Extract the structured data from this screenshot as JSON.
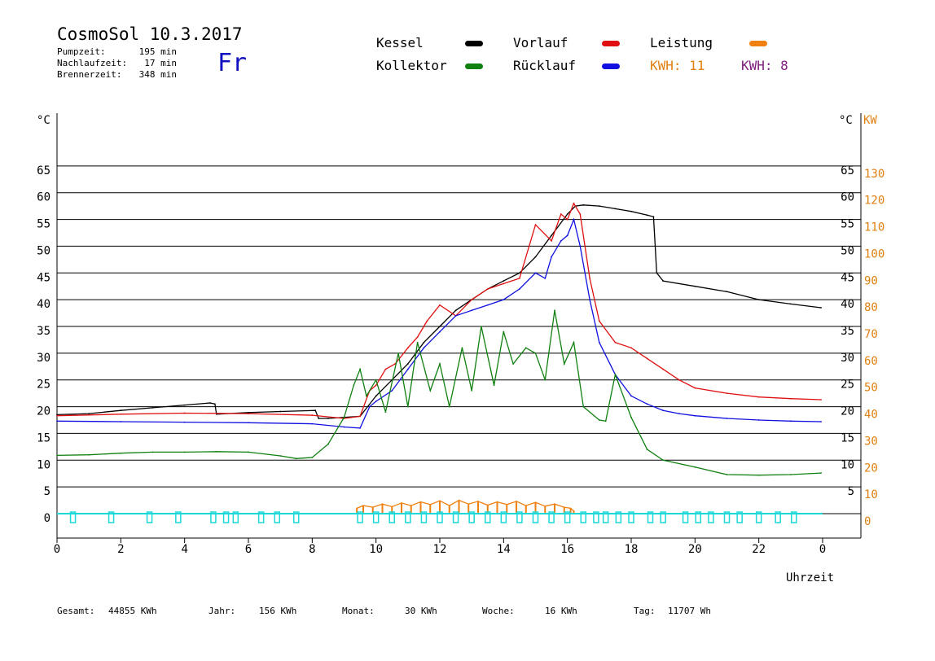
{
  "header": {
    "title": "CosmoSol 10.3.2017",
    "day": "Fr",
    "stats": [
      {
        "label": "Pumpzeit:",
        "value": "195 min"
      },
      {
        "label": "Nachlaufzeit:",
        "value": "17 min"
      },
      {
        "label": "Brennerzeit:",
        "value": "348 min"
      }
    ]
  },
  "legend": {
    "items": [
      {
        "label": "Kessel",
        "color": "#000000"
      },
      {
        "label": "Vorlauf",
        "color": "#e01010"
      },
      {
        "label": "Leistung",
        "color": "#f08010"
      },
      {
        "label": "Kollektor",
        "color": "#108010"
      },
      {
        "label": "Rücklauf",
        "color": "#1010e0"
      }
    ],
    "kwh_a": {
      "text": "KWH: 11",
      "color": "#e08010"
    },
    "kwh_b": {
      "text": "KWH: 8",
      "color": "#802080"
    }
  },
  "footer": {
    "items": [
      {
        "label": "Gesamt:",
        "value": "44855 KWh"
      },
      {
        "label": "Jahr:",
        "value": "156 KWh"
      },
      {
        "label": "Monat:",
        "value": "30 KWh"
      },
      {
        "label": "Woche:",
        "value": "16 KWh"
      },
      {
        "label": "Tag:",
        "value": "11707 Wh"
      }
    ]
  },
  "chart_data": {
    "type": "line",
    "xlabel": "Uhrzeit",
    "y_unit_left": "°C",
    "y_unit_right_temp": "°C",
    "y_unit_right_power": "KW",
    "xlim": [
      0,
      24
    ],
    "ylim": [
      0,
      70
    ],
    "x_ticks": [
      "0",
      "2",
      "4",
      "6",
      "8",
      "10",
      "12",
      "14",
      "16",
      "18",
      "20",
      "22",
      "0"
    ],
    "y_ticks_left": [
      "0",
      "5",
      "10",
      "15",
      "20",
      "25",
      "30",
      "35",
      "40",
      "45",
      "50",
      "55",
      "60",
      "65"
    ],
    "y_ticks_right_temp": [
      "5",
      "10",
      "15",
      "20",
      "25",
      "30",
      "35",
      "40",
      "45",
      "50",
      "55",
      "60",
      "65"
    ],
    "y_ticks_right_power": [
      "0",
      "10",
      "20",
      "30",
      "40",
      "50",
      "60",
      "70",
      "80",
      "90",
      "100",
      "110",
      "120",
      "130"
    ],
    "grid": true,
    "series": [
      {
        "name": "Kessel",
        "color": "#000000",
        "x": [
          0,
          1,
          2,
          3,
          4,
          4.8,
          4.95,
          5.0,
          6,
          7,
          8.1,
          8.2,
          8.5,
          9.5,
          10,
          10.5,
          11,
          11.5,
          12,
          12.5,
          13,
          13.5,
          14,
          14.5,
          15,
          15.5,
          16,
          16.25,
          16.5,
          17,
          17.5,
          18,
          18.5,
          18.7,
          18.8,
          19,
          20,
          21,
          22,
          23,
          23.95
        ],
        "y": [
          18.5,
          18.7,
          19.3,
          19.8,
          20.3,
          20.7,
          20.5,
          18.6,
          18.9,
          19.1,
          19.3,
          17.8,
          17.8,
          18.2,
          22,
          25,
          28,
          32,
          35,
          38,
          40,
          42,
          43.5,
          45,
          48,
          52,
          56,
          57.5,
          57.7,
          57.5,
          57,
          56.5,
          55.8,
          55.5,
          45,
          43.5,
          42.5,
          41.5,
          40,
          39.2,
          38.5
        ]
      },
      {
        "name": "Vorlauf",
        "color": "#e01010",
        "x": [
          0,
          2,
          4,
          6,
          8,
          9,
          9.5,
          9.8,
          10,
          10.3,
          10.6,
          11,
          11.3,
          11.6,
          12,
          12.5,
          13,
          13.5,
          14,
          14.5,
          15,
          15.5,
          15.8,
          16,
          16.2,
          16.4,
          16.7,
          17,
          17.5,
          18,
          18.5,
          19,
          19.5,
          20,
          21,
          22,
          23,
          23.95
        ],
        "y": [
          18.3,
          18.6,
          18.8,
          18.7,
          18.4,
          17.8,
          18.2,
          23,
          24,
          27,
          28,
          31,
          33,
          36,
          39,
          37,
          40,
          42,
          43,
          44,
          54,
          51,
          56,
          55,
          58,
          56,
          44,
          36,
          32,
          31,
          29,
          27,
          25,
          23.5,
          22.5,
          21.8,
          21.5,
          21.3
        ]
      },
      {
        "name": "Rücklauf",
        "color": "#1010e0",
        "x": [
          0,
          2,
          4,
          6,
          8,
          9,
          9.5,
          9.8,
          10,
          10.5,
          11,
          11.5,
          12,
          12.5,
          13,
          13.5,
          14,
          14.5,
          15,
          15.3,
          15.5,
          15.8,
          16,
          16.2,
          16.4,
          16.7,
          17,
          17.5,
          18,
          18.5,
          19,
          19.5,
          20,
          21,
          22,
          23,
          23.95
        ],
        "y": [
          17.3,
          17.2,
          17.1,
          17.0,
          16.8,
          16.2,
          16.0,
          20,
          21,
          23,
          27,
          31,
          34,
          37,
          38,
          39,
          40,
          42,
          45,
          44,
          48,
          51,
          52,
          55,
          50,
          40,
          32,
          26,
          22,
          20.5,
          19.3,
          18.7,
          18.3,
          17.8,
          17.5,
          17.3,
          17.2
        ]
      },
      {
        "name": "Kollektor",
        "color": "#108010",
        "x": [
          0,
          1,
          2,
          3,
          4,
          5,
          6,
          7,
          7.5,
          8,
          8.5,
          9,
          9.3,
          9.5,
          9.7,
          10,
          10.3,
          10.7,
          11,
          11.3,
          11.7,
          12,
          12.3,
          12.7,
          13,
          13.3,
          13.7,
          14,
          14.3,
          14.7,
          15,
          15.3,
          15.6,
          15.9,
          16.2,
          16.5,
          17,
          17.2,
          17.5,
          18,
          18.5,
          19,
          20,
          21,
          22,
          23,
          23.95
        ],
        "y": [
          10.9,
          11.0,
          11.3,
          11.5,
          11.5,
          11.6,
          11.5,
          10.8,
          10.3,
          10.5,
          13,
          18,
          24,
          27,
          22,
          25,
          19,
          30,
          20,
          32,
          23,
          28,
          20,
          31,
          23,
          35,
          24,
          34,
          28,
          31,
          30,
          25,
          38,
          28,
          32,
          20,
          17.5,
          17.3,
          26,
          18,
          12,
          10,
          8.7,
          7.3,
          7.2,
          7.3,
          7.6
        ]
      },
      {
        "name": "Leistung",
        "color": "#f08010",
        "x": [
          9.4,
          9.6,
          9.9,
          10.2,
          10.5,
          10.8,
          11.1,
          11.4,
          11.7,
          12.0,
          12.3,
          12.6,
          12.9,
          13.2,
          13.5,
          13.8,
          14.1,
          14.4,
          14.7,
          15.0,
          15.3,
          15.6,
          15.9,
          16.1,
          16.2
        ],
        "y": [
          1,
          1.5,
          1.2,
          1.8,
          1.3,
          2.0,
          1.5,
          2.2,
          1.7,
          2.4,
          1.5,
          2.5,
          1.8,
          2.3,
          1.6,
          2.2,
          1.7,
          2.3,
          1.5,
          2.1,
          1.4,
          1.8,
          1.2,
          1.0,
          0.5
        ]
      },
      {
        "name": "Pumpe",
        "color": "#1cd8d8",
        "x": [
          0.5,
          1.7,
          2.9,
          3.8,
          4.9,
          5.3,
          5.6,
          6.4,
          6.9,
          7.5,
          9.5,
          10.0,
          10.5,
          11.0,
          11.5,
          12.0,
          12.5,
          13.0,
          13.5,
          14.0,
          14.5,
          15.0,
          15.5,
          16.0,
          16.5,
          16.9,
          17.2,
          17.6,
          18.0,
          18.6,
          19.0,
          19.7,
          20.1,
          20.5,
          21.0,
          21.4,
          22.0,
          22.6,
          23.1
        ],
        "y": [
          1,
          1,
          1,
          1,
          1,
          1,
          1,
          1,
          1,
          1,
          1,
          1,
          1,
          1,
          1,
          1,
          1,
          1,
          1,
          1,
          1,
          1,
          1,
          1,
          1,
          1,
          1,
          1,
          1,
          1,
          1,
          1,
          1,
          1,
          1,
          1,
          1,
          1,
          1
        ]
      }
    ]
  }
}
